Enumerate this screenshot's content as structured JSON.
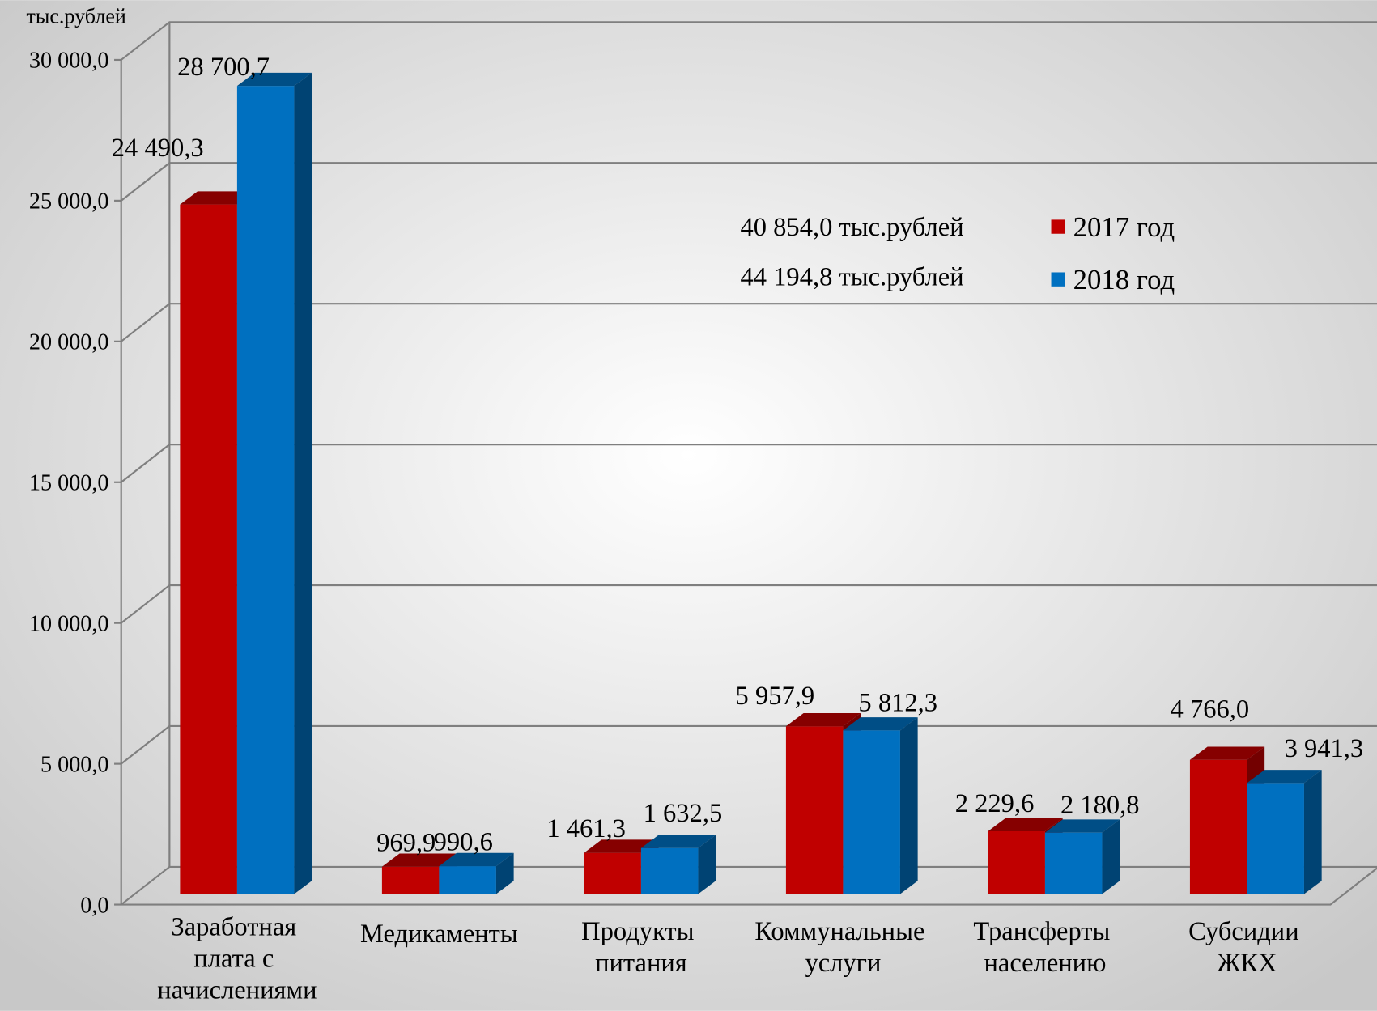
{
  "chart_data": {
    "type": "bar3d",
    "y_axis_label": "тыс.рублей",
    "categories": [
      "Заработная плата с начислениями",
      "Медикаменты",
      "Продукты питания",
      "Коммунальные услуги",
      "Трансферты населению",
      "Субсидии ЖКХ"
    ],
    "series": [
      {
        "name": "2017 год",
        "color": "#c00000",
        "values": [
          24490.3,
          969.9,
          1461.3,
          5957.9,
          2229.6,
          4766.0
        ],
        "value_labels": [
          "24 490,3",
          "969,9",
          "1 461,3",
          "5 957,9",
          "2 229,6",
          "4 766,0"
        ]
      },
      {
        "name": "2018 год",
        "color": "#0070c0",
        "values": [
          28700.7,
          990.6,
          1632.5,
          5812.3,
          2180.8,
          3941.3
        ],
        "value_labels": [
          "28 700,7",
          "990,6",
          "1 632,5",
          "5 812,3",
          "2 180,8",
          "3 941,3"
        ]
      }
    ],
    "annotations": [
      "40 854,0 тыс.рублей",
      "44 194,8 тыс.рублей"
    ],
    "ylim": [
      0,
      30000
    ],
    "yticks": [
      {
        "value": 0,
        "label": "0,0"
      },
      {
        "value": 5000,
        "label": "5 000,0"
      },
      {
        "value": 10000,
        "label": "10 000,0"
      },
      {
        "value": 15000,
        "label": "15 000,0"
      },
      {
        "value": 20000,
        "label": "20 000,0"
      },
      {
        "value": 25000,
        "label": "25 000,0"
      },
      {
        "value": 30000,
        "label": "30 000,0"
      }
    ],
    "grid": true,
    "legend": "upper right"
  }
}
